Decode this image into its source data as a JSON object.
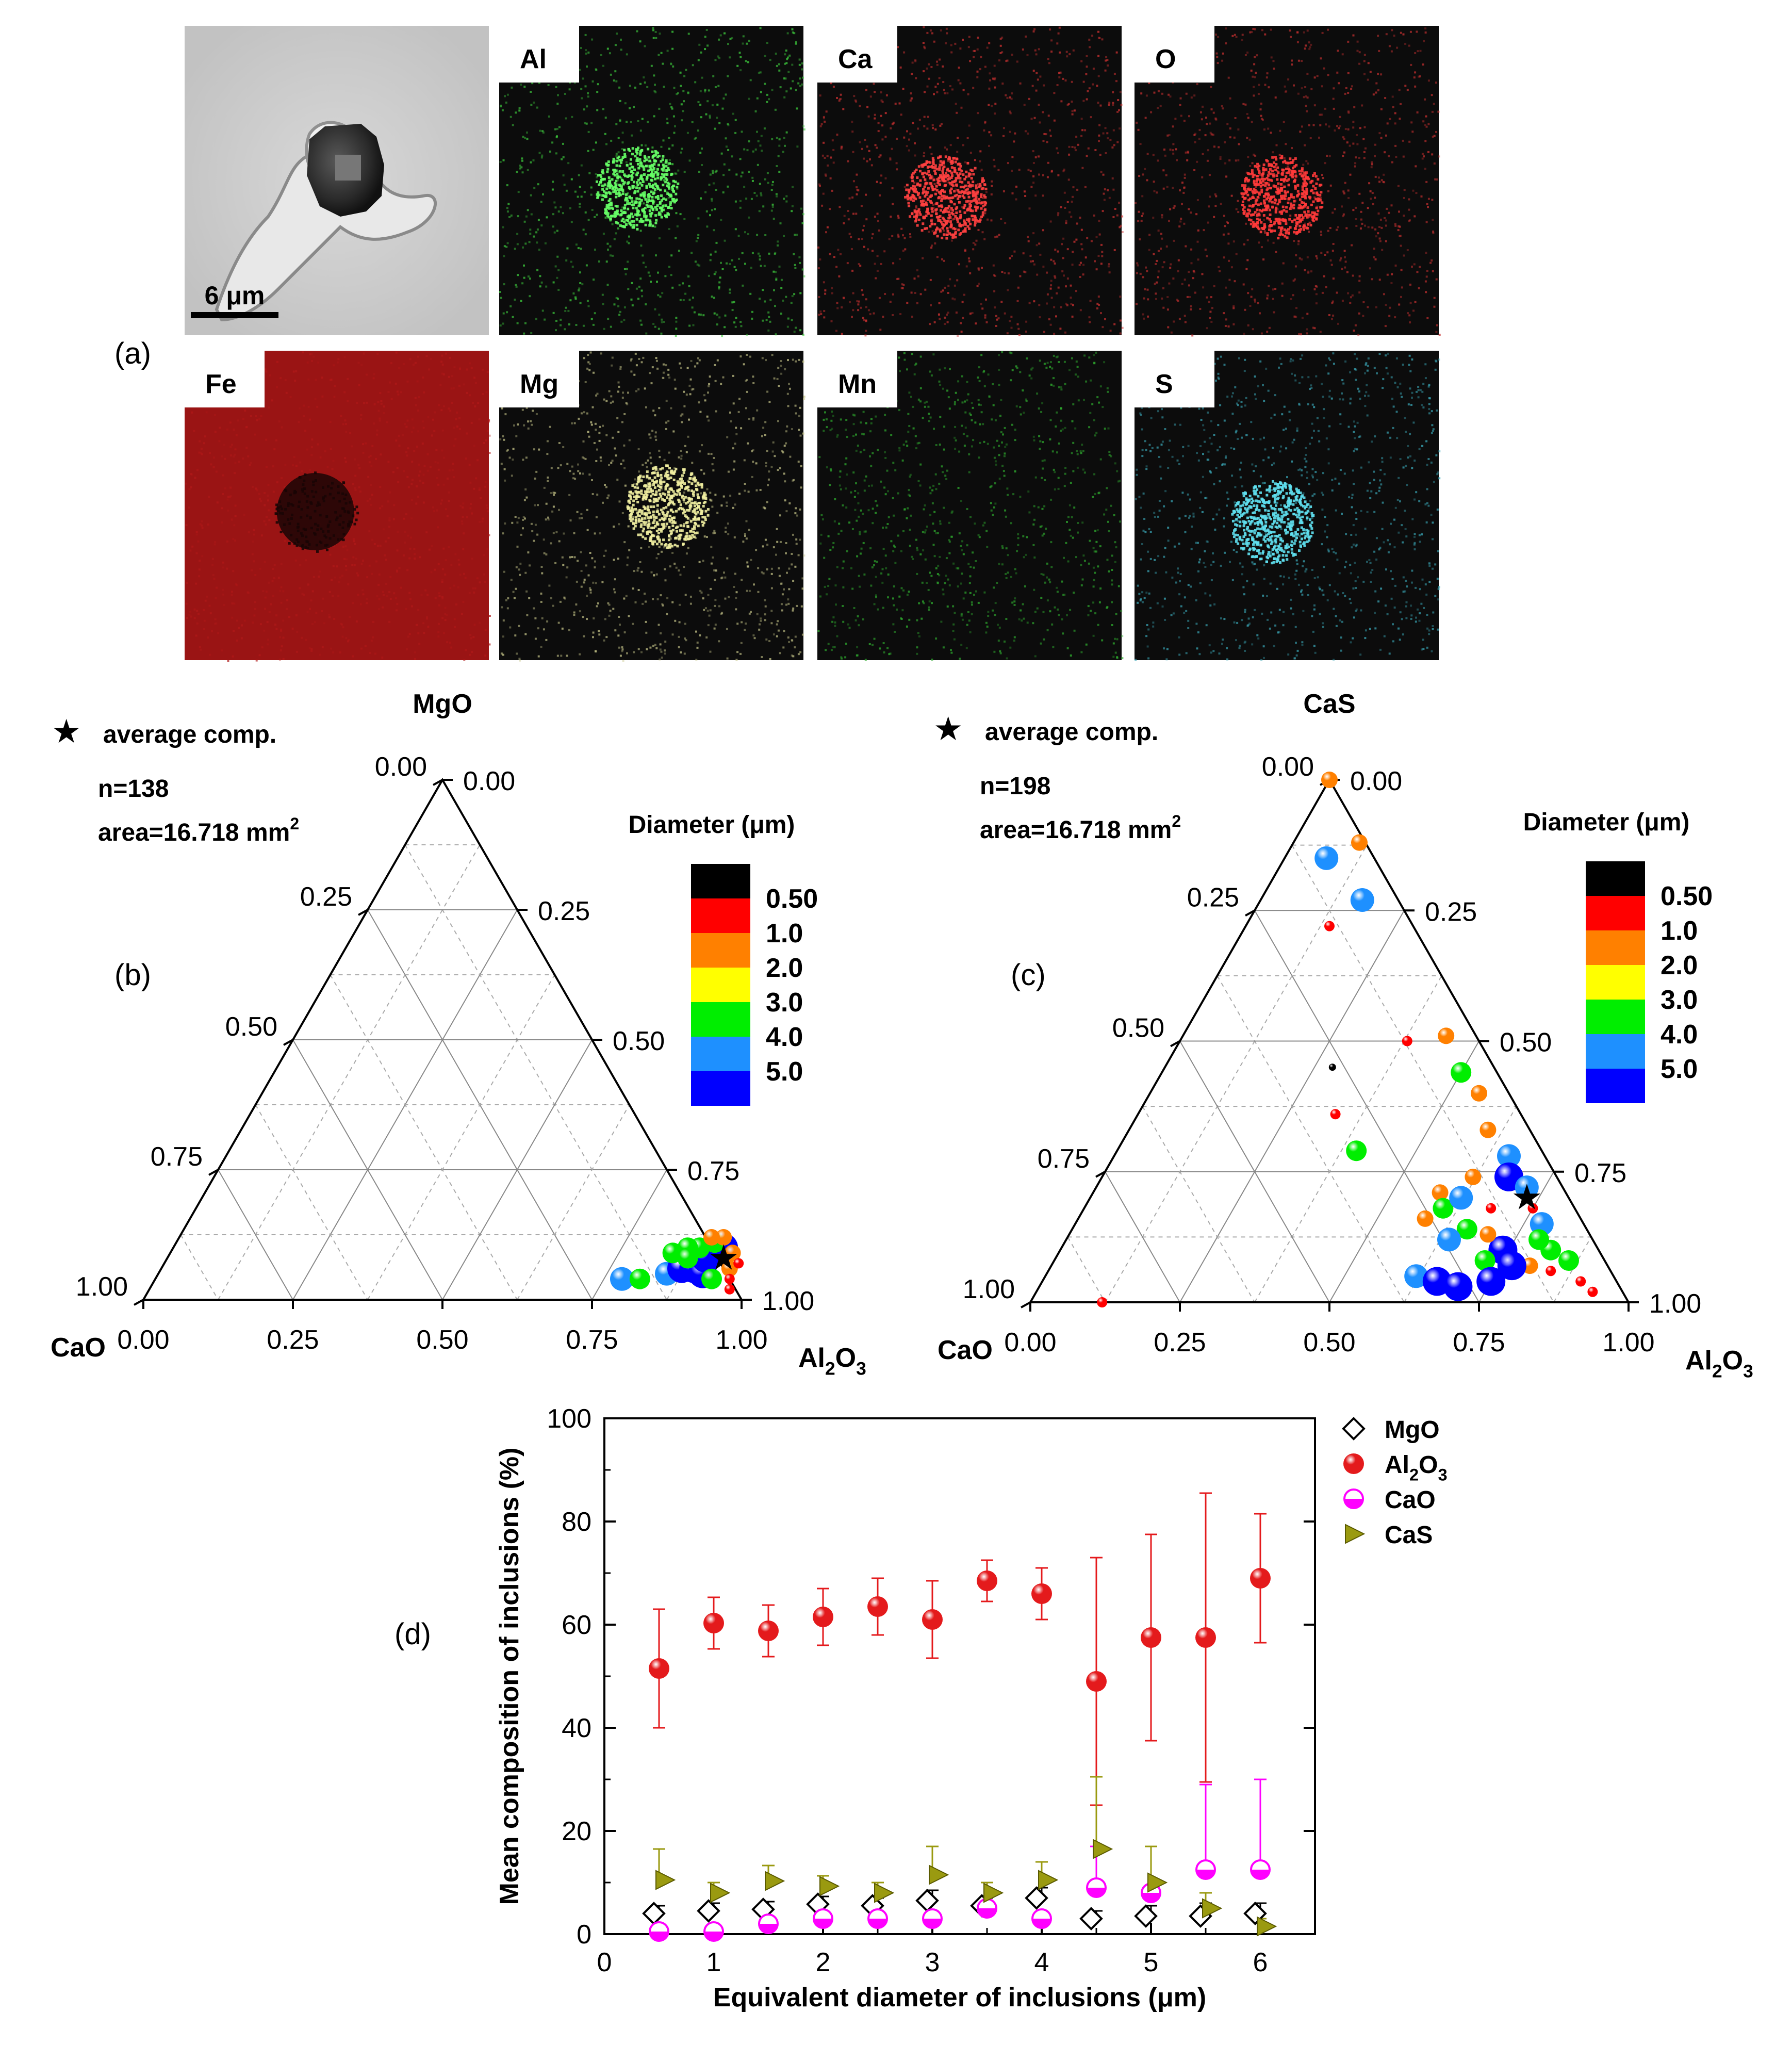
{
  "panel_a": {
    "label": "(a)",
    "scale_bar_label": "6 μm",
    "maps": [
      {
        "element": "Al",
        "color": "#3fd23f",
        "blob_color": "#66ff66",
        "blob": true
      },
      {
        "element": "Ca",
        "color": "#d23232",
        "blob_color": "#ff4040",
        "blob": true
      },
      {
        "element": "O",
        "color": "#c83030",
        "blob_color": "#ff3a3a",
        "blob": true
      },
      {
        "element": "Fe",
        "color": "#b01818",
        "blob_color": "#1a0505",
        "blob": true
      },
      {
        "element": "Mg",
        "color": "#c8c78a",
        "blob_color": "#f0eea0",
        "blob": true
      },
      {
        "element": "Mn",
        "color": "#2fae2f",
        "blob_color": "#2fae2f",
        "blob": false
      },
      {
        "element": "S",
        "color": "#3aa8b8",
        "blob_color": "#5fe0f0",
        "blob": true
      }
    ]
  },
  "chart_data": [
    {
      "type": "ternary-scatter",
      "panel_label": "(b)",
      "apex_top": "MgO",
      "apex_left": "CaO",
      "apex_right": "Al2O3",
      "legend_star": "average comp.",
      "n_text": "n=138",
      "area_text": "area=16.718 mm",
      "area_sup": "2",
      "colorbar_title": "Diameter (μm)",
      "colorbar_labels": [
        "0.50",
        "1.0",
        "2.0",
        "3.0",
        "4.0",
        "5.0"
      ],
      "colorbar_colors": [
        "#000000",
        "#ff0000",
        "#ff8000",
        "#ffff00",
        "#00ee00",
        "#1e90ff",
        "#0000ff"
      ],
      "left_ticks": [
        "0.00",
        "0.25",
        "0.50",
        "0.75",
        "1.00"
      ],
      "right_ticks": [
        "1.00",
        "0.75",
        "0.50",
        "0.25",
        "0.00"
      ],
      "bottom_ticks": [
        "0.00",
        "0.25",
        "0.50",
        "0.75",
        "1.00"
      ],
      "average": {
        "Al2O3": 0.93,
        "MgO": 0.08
      },
      "points": [
        {
          "Al2O3": 0.78,
          "MgO": 0.04,
          "d": 4.0
        },
        {
          "Al2O3": 0.81,
          "MgO": 0.04,
          "d": 3.0
        },
        {
          "Al2O3": 0.85,
          "MgO": 0.05,
          "d": 4.0
        },
        {
          "Al2O3": 0.87,
          "MgO": 0.06,
          "d": 5.0
        },
        {
          "Al2O3": 0.89,
          "MgO": 0.06,
          "d": 5.0
        },
        {
          "Al2O3": 0.91,
          "MgO": 0.05,
          "d": 5.0
        },
        {
          "Al2O3": 0.9,
          "MgO": 0.08,
          "d": 5.0
        },
        {
          "Al2O3": 0.92,
          "MgO": 0.1,
          "d": 5.0
        },
        {
          "Al2O3": 0.88,
          "MgO": 0.1,
          "d": 3.0
        },
        {
          "Al2O3": 0.86,
          "MgO": 0.1,
          "d": 3.0
        },
        {
          "Al2O3": 0.84,
          "MgO": 0.09,
          "d": 3.0
        },
        {
          "Al2O3": 0.9,
          "MgO": 0.11,
          "d": 3.0
        },
        {
          "Al2O3": 0.87,
          "MgO": 0.08,
          "d": 3.0
        },
        {
          "Al2O3": 0.93,
          "MgO": 0.04,
          "d": 3.0
        },
        {
          "Al2O3": 0.95,
          "MgO": 0.06,
          "d": 2.0
        },
        {
          "Al2O3": 0.96,
          "MgO": 0.04,
          "d": 1.0
        },
        {
          "Al2O3": 0.97,
          "MgO": 0.02,
          "d": 1.0
        },
        {
          "Al2O3": 0.94,
          "MgO": 0.09,
          "d": 2.0
        },
        {
          "Al2O3": 0.91,
          "MgO": 0.12,
          "d": 2.0
        },
        {
          "Al2O3": 0.89,
          "MgO": 0.12,
          "d": 2.0
        },
        {
          "Al2O3": 0.96,
          "MgO": 0.07,
          "d": 1.0
        }
      ]
    },
    {
      "type": "ternary-scatter",
      "panel_label": "(c)",
      "apex_top": "CaS",
      "apex_left": "CaO",
      "apex_right": "Al2O3",
      "legend_star": "average comp.",
      "n_text": "n=198",
      "area_text": "area=16.718 mm",
      "area_sup": "2",
      "colorbar_title": "Diameter (μm)",
      "colorbar_labels": [
        "0.50",
        "1.0",
        "2.0",
        "3.0",
        "4.0",
        "5.0"
      ],
      "colorbar_colors": [
        "#000000",
        "#ff0000",
        "#ff8000",
        "#ffff00",
        "#00ee00",
        "#1e90ff",
        "#0000ff"
      ],
      "left_ticks": [
        "0.00",
        "0.25",
        "0.50",
        "0.75",
        "1.00"
      ],
      "right_ticks": [
        "1.00",
        "0.75",
        "0.50",
        "0.25",
        "0.00"
      ],
      "bottom_ticks": [
        "0.00",
        "0.25",
        "0.50",
        "0.75",
        "1.00"
      ],
      "average": {
        "Al2O3": 0.73,
        "CaS": 0.2
      },
      "points": [
        {
          "Al2O3": 0.0,
          "CaS": 1.0,
          "d": 2.0
        },
        {
          "Al2O3": 0.07,
          "CaS": 0.85,
          "d": 4.0
        },
        {
          "Al2O3": 0.11,
          "CaS": 0.88,
          "d": 2.0
        },
        {
          "Al2O3": 0.14,
          "CaS": 0.72,
          "d": 1.0
        },
        {
          "Al2O3": 0.17,
          "CaS": 0.77,
          "d": 4.0
        },
        {
          "Al2O3": 0.28,
          "CaS": 0.45,
          "d": 0.5
        },
        {
          "Al2O3": 0.33,
          "CaS": 0.36,
          "d": 1.0
        },
        {
          "Al2O3": 0.4,
          "CaS": 0.29,
          "d": 3.0
        },
        {
          "Al2O3": 0.12,
          "CaS": 0.0,
          "d": 1.0
        },
        {
          "Al2O3": 0.38,
          "CaS": 0.5,
          "d": 1.0
        },
        {
          "Al2O3": 0.44,
          "CaS": 0.51,
          "d": 2.0
        },
        {
          "Al2O3": 0.5,
          "CaS": 0.44,
          "d": 3.0
        },
        {
          "Al2O3": 0.55,
          "CaS": 0.4,
          "d": 2.0
        },
        {
          "Al2O3": 0.6,
          "CaS": 0.33,
          "d": 2.0
        },
        {
          "Al2O3": 0.66,
          "CaS": 0.28,
          "d": 4.0
        },
        {
          "Al2O3": 0.68,
          "CaS": 0.24,
          "d": 5.0
        },
        {
          "Al2O3": 0.72,
          "CaS": 0.22,
          "d": 4.0
        },
        {
          "Al2O3": 0.75,
          "CaS": 0.18,
          "d": 1.0
        },
        {
          "Al2O3": 0.78,
          "CaS": 0.15,
          "d": 4.0
        },
        {
          "Al2O3": 0.82,
          "CaS": 0.1,
          "d": 3.0
        },
        {
          "Al2O3": 0.86,
          "CaS": 0.08,
          "d": 3.0
        },
        {
          "Al2O3": 0.9,
          "CaS": 0.04,
          "d": 1.0
        },
        {
          "Al2O3": 0.93,
          "CaS": 0.02,
          "d": 1.0
        },
        {
          "Al2O3": 0.58,
          "CaS": 0.21,
          "d": 2.0
        },
        {
          "Al2O3": 0.6,
          "CaS": 0.18,
          "d": 3.0
        },
        {
          "Al2O3": 0.58,
          "CaS": 0.16,
          "d": 2.0
        },
        {
          "Al2O3": 0.66,
          "CaS": 0.14,
          "d": 3.0
        },
        {
          "Al2O3": 0.64,
          "CaS": 0.12,
          "d": 4.0
        },
        {
          "Al2O3": 0.62,
          "CaS": 0.2,
          "d": 4.0
        },
        {
          "Al2O3": 0.74,
          "CaS": 0.1,
          "d": 5.0
        },
        {
          "Al2O3": 0.72,
          "CaS": 0.08,
          "d": 3.0
        },
        {
          "Al2O3": 0.7,
          "CaS": 0.13,
          "d": 2.0
        },
        {
          "Al2O3": 0.62,
          "CaS": 0.05,
          "d": 4.0
        },
        {
          "Al2O3": 0.66,
          "CaS": 0.04,
          "d": 5.0
        },
        {
          "Al2O3": 0.7,
          "CaS": 0.03,
          "d": 5.0
        },
        {
          "Al2O3": 0.75,
          "CaS": 0.04,
          "d": 5.0
        },
        {
          "Al2O3": 0.8,
          "CaS": 0.07,
          "d": 2.0
        },
        {
          "Al2O3": 0.84,
          "CaS": 0.06,
          "d": 1.0
        },
        {
          "Al2O3": 0.79,
          "CaS": 0.12,
          "d": 3.0
        },
        {
          "Al2O3": 0.77,
          "CaS": 0.07,
          "d": 5.0
        },
        {
          "Al2O3": 0.68,
          "CaS": 0.18,
          "d": 1.0
        },
        {
          "Al2O3": 0.62,
          "CaS": 0.24,
          "d": 2.0
        }
      ]
    },
    {
      "type": "scatter-errorbar",
      "panel_label": "(d)",
      "xlabel": "Equivalent diameter of inclusions (μm)",
      "ylabel": "Mean composition of inclusions (%)",
      "xlim": [
        0,
        6.5
      ],
      "ylim": [
        0,
        100
      ],
      "x_ticks": [
        "0",
        "1",
        "2",
        "3",
        "4",
        "5",
        "6"
      ],
      "y_ticks": [
        "0",
        "20",
        "40",
        "60",
        "80",
        "100"
      ],
      "x": [
        0.5,
        1.0,
        1.5,
        2.0,
        2.5,
        3.0,
        3.5,
        4.0,
        4.5,
        5.0,
        5.5,
        6.0
      ],
      "series": [
        {
          "name": "MgO",
          "symbol": "diamond-open",
          "color": "#000000",
          "values": [
            4.0,
            4.5,
            4.8,
            5.8,
            5.5,
            6.5,
            5.5,
            7.0,
            3.0,
            3.5,
            3.5,
            4.0
          ],
          "errors": [
            1.5,
            1.5,
            1.5,
            1.5,
            1.5,
            2.0,
            1.5,
            2.0,
            1.5,
            2.0,
            2.5,
            2.0
          ]
        },
        {
          "name": "Al2O3",
          "symbol": "sphere",
          "color": "#e41a1c",
          "values": [
            51.5,
            60.3,
            58.8,
            61.5,
            63.5,
            61.0,
            68.5,
            66.0,
            49.0,
            57.5,
            57.5,
            69.0
          ],
          "errors": [
            11.5,
            5.0,
            5.0,
            5.5,
            5.5,
            7.5,
            4.0,
            5.0,
            24.0,
            20.0,
            28.0,
            12.5
          ]
        },
        {
          "name": "CaO",
          "symbol": "half-circle",
          "color": "#ff00ff",
          "values": [
            0.5,
            0.5,
            2.0,
            3.0,
            3.0,
            3.0,
            5.0,
            3.0,
            9.0,
            8.0,
            12.5,
            12.5
          ],
          "errors": [
            0.5,
            0.5,
            1.0,
            1.5,
            1.0,
            1.5,
            1.5,
            1.5,
            8.0,
            9.0,
            16.5,
            17.5
          ]
        },
        {
          "name": "CaS",
          "symbol": "triangle-right",
          "color": "#9a9a10",
          "values": [
            10.5,
            8.0,
            10.3,
            9.3,
            8.0,
            11.5,
            8.0,
            10.5,
            16.5,
            10.0,
            5.0,
            1.5
          ],
          "errors": [
            6.0,
            2.0,
            3.0,
            2.0,
            2.0,
            5.5,
            2.0,
            3.5,
            14.0,
            7.0,
            3.0,
            1.5
          ]
        }
      ],
      "legend": [
        "MgO",
        "Al2O3",
        "CaO",
        "CaS"
      ]
    }
  ]
}
